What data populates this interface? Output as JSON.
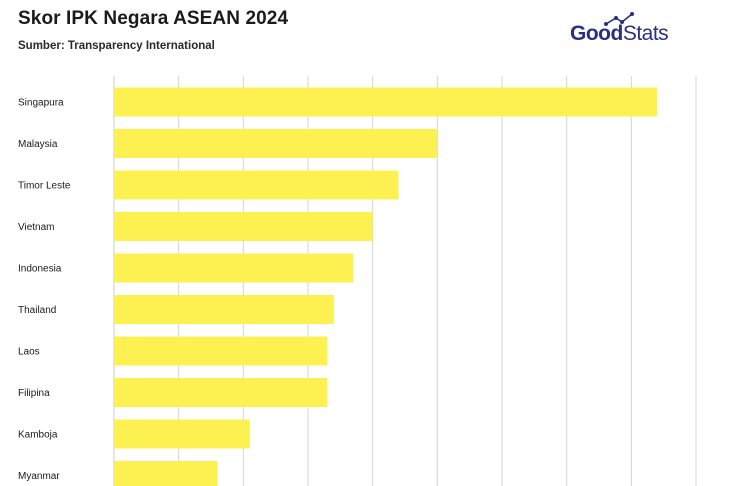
{
  "header": {
    "title": "Skor IPK Negara ASEAN 2024",
    "subtitle": "Sumber: Transparency International"
  },
  "logo": {
    "part1": "Good",
    "part2": "Stats",
    "color": "#2b2f82"
  },
  "colors": {
    "bar": "#fcf151",
    "grid": "#d4d4d4"
  },
  "chart_data": {
    "type": "bar",
    "orientation": "horizontal",
    "title": "Skor IPK Negara ASEAN 2024",
    "subtitle": "Sumber: Transparency International",
    "categories": [
      "Singapura",
      "Malaysia",
      "Timor Leste",
      "Vietnam",
      "Indonesia",
      "Thailand",
      "Laos",
      "Filipina",
      "Kamboja",
      "Myanmar"
    ],
    "values": [
      84,
      50,
      44,
      40,
      37,
      34,
      33,
      33,
      21,
      16
    ],
    "xlim": [
      0,
      90
    ],
    "grid": true,
    "xlabel": "",
    "ylabel": ""
  }
}
